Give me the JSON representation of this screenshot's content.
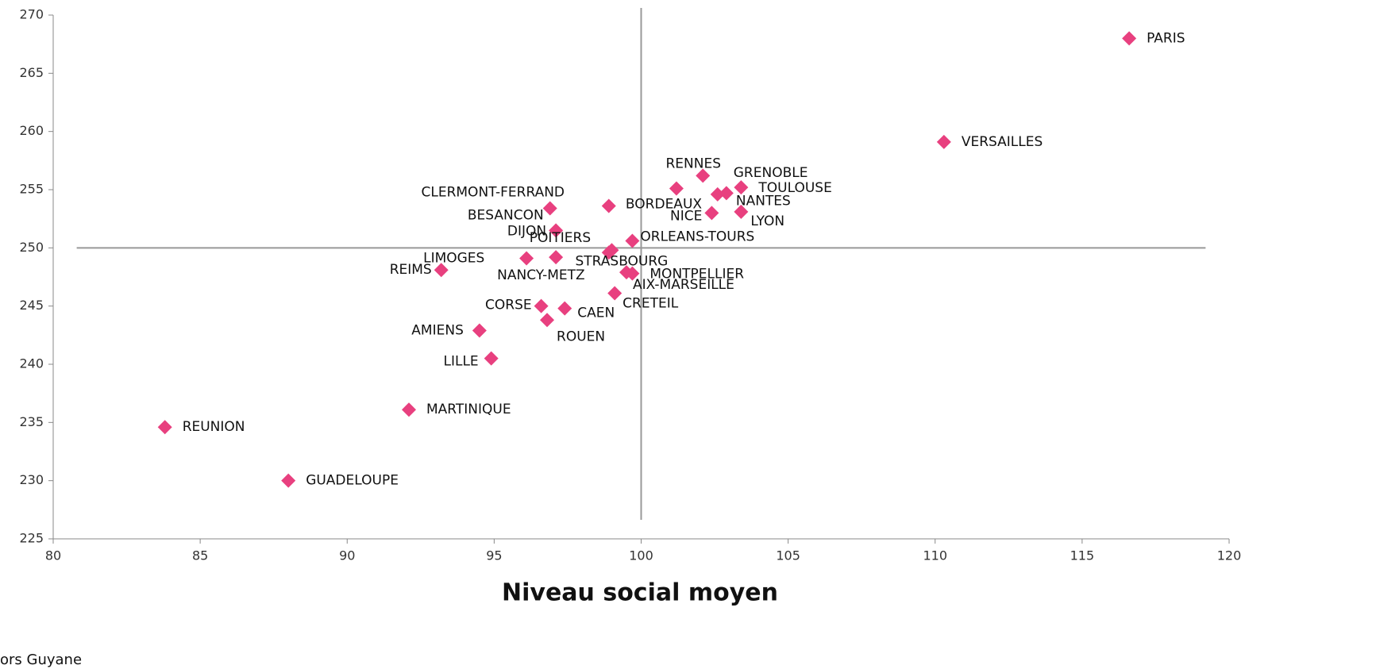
{
  "chart_data": {
    "type": "scatter",
    "x_label": "Niveau social moyen",
    "note": "ors Guyane",
    "color": "#e8407f",
    "xlim": [
      80,
      120
    ],
    "xticks": [
      80,
      85,
      90,
      95,
      100,
      105,
      110,
      115,
      120
    ],
    "ylim": [
      225,
      270
    ],
    "yticks": [
      225,
      230,
      235,
      240,
      245,
      250,
      255,
      260,
      265,
      270
    ],
    "reference_lines": {
      "x": 100,
      "y": 250
    },
    "series": [
      {
        "name": null,
        "color": "#e8407f",
        "labels": [
          "PARIS",
          "VERSAILLES",
          "RENNES",
          "GRENOBLE",
          "TOULOUSE",
          "NANTES",
          "NICE",
          "LYON",
          "BORDEAUX",
          "CLERMONT-FERRAND",
          "BESANCON",
          "DIJON",
          "ORLEANS-TOURS",
          "POITIERS",
          "STRASBOURG",
          "LIMOGES",
          "NANCY-METZ",
          "MONTPELLIER",
          "AIX-MARSEILLE",
          "CRETEIL",
          "CORSE",
          "CAEN",
          "ROUEN",
          "AMIENS",
          "LILLE",
          "REIMS",
          "MARTINIQUE",
          "REUNION",
          "GUADELOUPE"
        ],
        "x": [
          116.6,
          110.3,
          102.1,
          102.6,
          103.4,
          102.9,
          102.4,
          103.4,
          101.2,
          98.9,
          96.9,
          97.1,
          99.7,
          98.9,
          99.0,
          96.1,
          97.1,
          99.7,
          99.5,
          99.1,
          96.6,
          97.4,
          96.8,
          94.5,
          94.9,
          93.2,
          92.1,
          83.8,
          88.0
        ],
        "values": [
          268.0,
          259.1,
          256.2,
          254.6,
          255.2,
          254.7,
          253.0,
          253.1,
          255.1,
          253.6,
          253.4,
          251.5,
          250.6,
          249.6,
          249.8,
          249.1,
          249.2,
          247.8,
          247.9,
          246.1,
          245.0,
          244.8,
          243.8,
          242.9,
          240.5,
          248.1,
          236.1,
          234.6,
          230.0
        ]
      }
    ]
  }
}
